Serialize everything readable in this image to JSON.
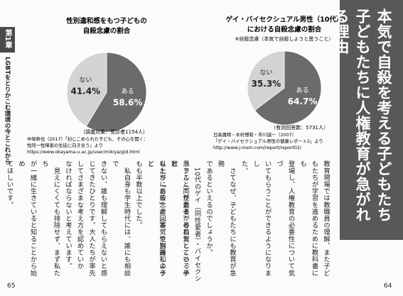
{
  "chart_data": [
    {
      "type": "pie",
      "title": [
        "性別違和感をもつ子どもの",
        "自殺念慮の割合"
      ],
      "categories": [
        "ある",
        "ない"
      ],
      "values": [
        58.6,
        41.4
      ],
      "value_labels": [
        "58.6%",
        "41.4%"
      ],
      "colors": [
        "#6b6b6b",
        "#d3d3d3"
      ],
      "note": "（調査対象：受診者1154人）",
      "source": [
        "中塚幹也（2017）「封じこめられた子ども、その心を開く：",
        "性同一性障害の生徒に向き合う」より",
        "https://www.okayama-u.ac.jp/user/mikiya/gid.html"
      ]
    },
    {
      "type": "pie",
      "title": [
        "ゲイ・バイセクシュアル男性（10代）",
        "における自殺念慮の割合"
      ],
      "subtitle": "※自殺念慮（本気で自殺しようと思うこと）",
      "categories": [
        "ある",
        "ない"
      ],
      "values": [
        64.7,
        35.3
      ],
      "value_labels": [
        "64.7%",
        "35.3%"
      ],
      "colors": [
        "#6b6b6b",
        "#d3d3d3"
      ],
      "note": "（有効回答数：5731人）",
      "source": [
        "日高庸晴・木村博和・市川誠一（2007）",
        "「ゲイ・バイセクシュアル男性の健康レポート2」より",
        "http://www.j-msm.com/report/report02/"
      ]
    }
  ],
  "side_tab": {
    "chapter": "第1章",
    "title": "LGBTをとりかこむ環境の今とこれから"
  },
  "left_page": {
    "body": [
      "思うこと）があるか尋ねたところ、半数",
      "以上が「ある」と回答。性別違和の子ど",
      "もも半数以上でした。",
      "　私自身も学生時代には、誰にも相談で",
      "きない、誰も理解してもらえないと感",
      "じてきたひとりです。大人たちが率先",
      "してさまざまな考え方を認めていか",
      "なければならないと考えています。",
      "　見えにくくても排除せず、まず私たち",
      "が一緒に生きていると知ることから始め",
      "てほしいです。"
    ],
    "page_number": "65"
  },
  "right_page": {
    "heading": [
      "本気で自殺を考える子どもたち",
      "子どもたちに人権教育が急がれる理由"
    ],
    "body": [
      "教育現場では教職員の理解、また子ど",
      "もたちが学習を進めるために教科書にも",
      "登場し、人権教育の必要性について気づ",
      "いてもらうことができるようになりまし",
      "た。",
      "　さてなぜ、子どもたちにも教育が急務",
      "であるといえるのでしょうか。",
      "　10代のゲイ（同性愛者）・バイセクシ",
      "ュアル（両性愛者）と自覚している子ど",
      "もたちに自殺念慮（本気で自殺しようと"
    ],
    "page_number": "64"
  }
}
